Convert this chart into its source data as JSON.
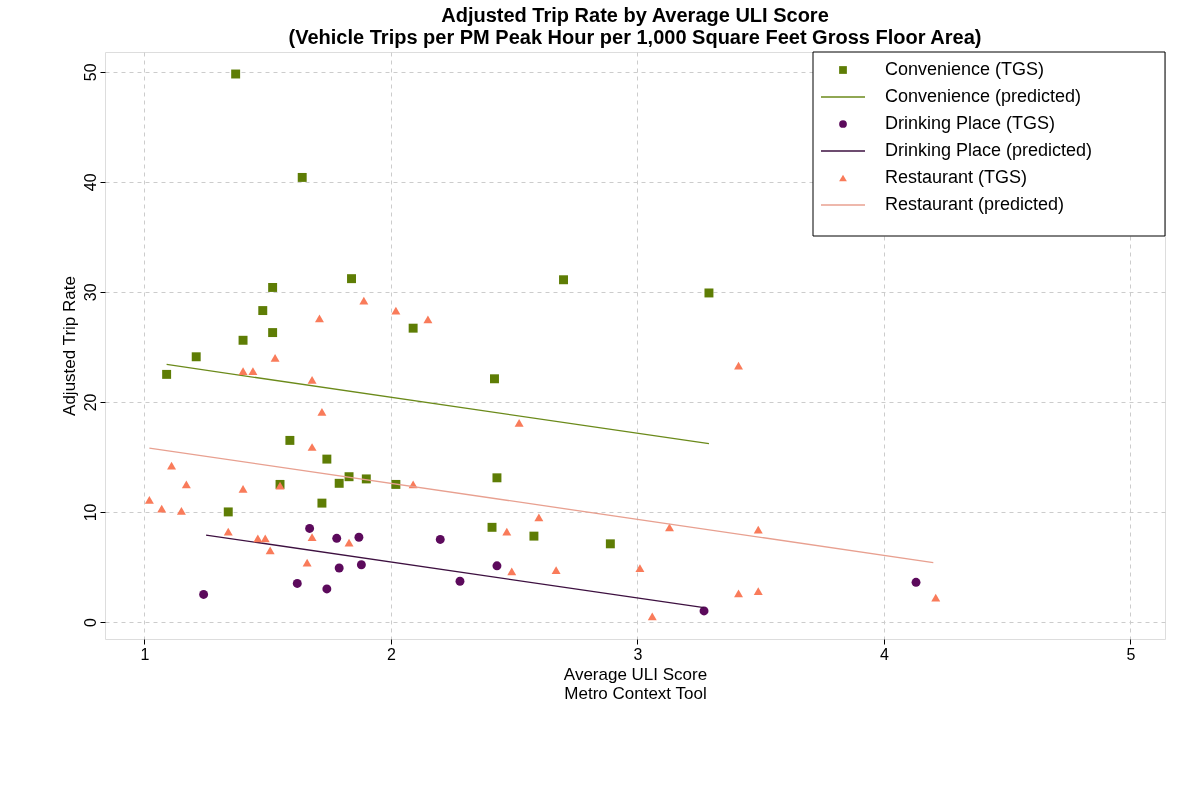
{
  "chart_data": {
    "type": "scatter",
    "title": "Adjusted Trip Rate by Average ULI Score\n(Vehicle Trips per PM Peak Hour per 1,000 Square Feet Gross Floor Area)",
    "xlabel": "Average ULI Score\nMetro Context Tool",
    "ylabel": "Adjusted Trip Rate",
    "xlim": [
      0.84,
      5.14
    ],
    "ylim": [
      -1.55,
      51.8
    ],
    "xticks": [
      1,
      2,
      3,
      4,
      5
    ],
    "yticks": [
      0,
      10,
      20,
      30,
      40,
      50
    ],
    "grid": true,
    "legend": "top right",
    "series": [
      {
        "name": "Convenience (TGS)",
        "marker": "square",
        "color": "#5e7d05",
        "x": [
          1.37,
          1.64,
          1.84,
          1.52,
          2.7,
          3.29,
          1.48,
          1.4,
          1.52,
          2.09,
          1.21,
          1.09,
          2.42,
          1.59,
          1.74,
          1.55,
          1.79,
          1.83,
          1.9,
          2.02,
          2.43,
          1.72,
          1.34,
          2.41,
          2.58,
          2.89
        ],
        "values": [
          49.8,
          40.4,
          31.2,
          30.4,
          31.1,
          29.9,
          28.3,
          25.6,
          26.3,
          26.7,
          24.1,
          22.5,
          22.1,
          16.5,
          14.8,
          12.5,
          12.6,
          13.2,
          13.0,
          12.5,
          13.1,
          10.8,
          10.0,
          8.6,
          7.8,
          7.1
        ]
      },
      {
        "name": "Convenience (predicted)",
        "type": "line",
        "color": "#6b8a1a",
        "x": [
          1.09,
          3.29
        ],
        "values": [
          23.4,
          16.2
        ]
      },
      {
        "name": "Drinking Place (TGS)",
        "marker": "circle",
        "color": "#5c0a5c",
        "x": [
          1.24,
          1.62,
          1.67,
          1.74,
          1.78,
          1.79,
          1.87,
          1.88,
          2.2,
          2.28,
          2.43,
          3.27,
          4.13
        ],
        "values": [
          2.5,
          3.5,
          8.5,
          3.0,
          7.6,
          4.9,
          7.7,
          5.2,
          7.5,
          3.7,
          5.1,
          1.0,
          3.6
        ]
      },
      {
        "name": "Drinking Place (predicted)",
        "type": "line",
        "color": "#3d1040",
        "x": [
          1.25,
          3.27
        ],
        "values": [
          7.9,
          1.3
        ]
      },
      {
        "name": "Restaurant (TGS)",
        "marker": "triangle",
        "color": "#f97b5a",
        "x": [
          1.02,
          1.07,
          1.11,
          1.15,
          1.17,
          1.34,
          1.4,
          1.4,
          1.44,
          1.46,
          1.49,
          1.51,
          1.53,
          1.55,
          1.66,
          1.68,
          1.68,
          1.68,
          1.71,
          1.72,
          1.83,
          1.89,
          2.02,
          2.09,
          2.15,
          2.47,
          2.49,
          2.52,
          2.6,
          2.67,
          3.01,
          3.06,
          3.13,
          3.41,
          3.41,
          3.49,
          3.49,
          4.21
        ],
        "values": [
          11.1,
          10.3,
          14.2,
          10.1,
          12.5,
          8.2,
          12.1,
          22.8,
          22.8,
          7.6,
          7.6,
          6.5,
          24.0,
          12.4,
          5.4,
          7.7,
          15.9,
          22.0,
          27.6,
          19.1,
          7.2,
          29.2,
          28.3,
          12.5,
          27.5,
          8.2,
          4.6,
          18.1,
          9.5,
          4.7,
          4.9,
          0.5,
          8.6,
          23.3,
          2.6,
          8.4,
          2.8,
          2.2
        ]
      },
      {
        "name": "Restaurant (predicted)",
        "type": "line",
        "color": "#e8a090",
        "x": [
          1.02,
          4.2
        ],
        "values": [
          15.8,
          5.4
        ]
      }
    ]
  }
}
